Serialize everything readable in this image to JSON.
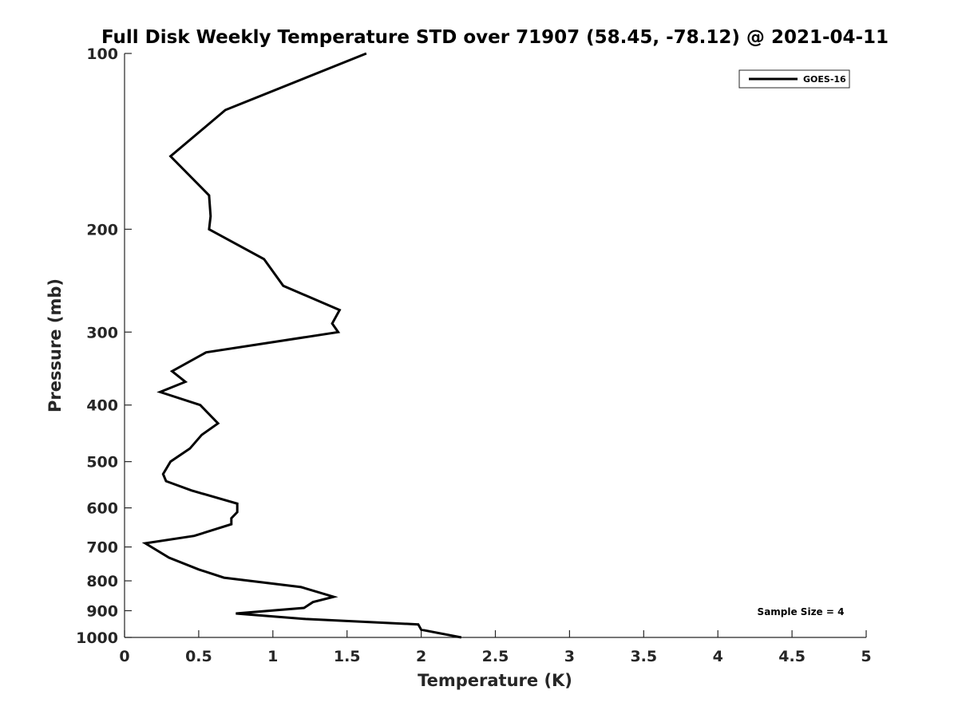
{
  "chart_data": {
    "type": "line",
    "title": "Full Disk Weekly Temperature STD over 71907 (58.45, -78.12) @ 2021-04-11",
    "xlabel": "Temperature (K)",
    "ylabel": "Pressure (mb)",
    "xlim": [
      0,
      5
    ],
    "ylim": [
      100,
      1000
    ],
    "y_scale": "log",
    "y_reversed": true,
    "grid": false,
    "legend_position": "top-right",
    "x_ticks": [
      0,
      0.5,
      1,
      1.5,
      2,
      2.5,
      3,
      3.5,
      4,
      4.5,
      5
    ],
    "x_tick_labels": [
      "0",
      "0.5",
      "1",
      "1.5",
      "2",
      "2.5",
      "3",
      "3.5",
      "4",
      "4.5",
      "5"
    ],
    "y_ticks": [
      100,
      200,
      300,
      400,
      500,
      600,
      700,
      800,
      900,
      1000
    ],
    "y_tick_labels": [
      "100",
      "200",
      "300",
      "400",
      "500",
      "600",
      "700",
      "800",
      "900",
      "1000"
    ],
    "annotation": "Sample Size = 4",
    "series": [
      {
        "name": "GOES-16",
        "color": "#000000",
        "points": [
          [
            1.63,
            100
          ],
          [
            0.68,
            125
          ],
          [
            0.31,
            150
          ],
          [
            0.57,
            175
          ],
          [
            0.58,
            190
          ],
          [
            0.57,
            200
          ],
          [
            0.94,
            225
          ],
          [
            1.07,
            250
          ],
          [
            1.45,
            275
          ],
          [
            1.4,
            290
          ],
          [
            1.44,
            300
          ],
          [
            0.55,
            325
          ],
          [
            0.32,
            350
          ],
          [
            0.41,
            365
          ],
          [
            0.24,
            380
          ],
          [
            0.51,
            400
          ],
          [
            0.63,
            430
          ],
          [
            0.52,
            450
          ],
          [
            0.44,
            475
          ],
          [
            0.31,
            500
          ],
          [
            0.26,
            525
          ],
          [
            0.28,
            540
          ],
          [
            0.45,
            560
          ],
          [
            0.76,
            590
          ],
          [
            0.76,
            610
          ],
          [
            0.72,
            625
          ],
          [
            0.72,
            640
          ],
          [
            0.47,
            670
          ],
          [
            0.14,
            690
          ],
          [
            0.3,
            730
          ],
          [
            0.5,
            765
          ],
          [
            0.67,
            790
          ],
          [
            1.19,
            820
          ],
          [
            1.41,
            852
          ],
          [
            1.27,
            870
          ],
          [
            1.21,
            890
          ],
          [
            0.75,
            910
          ],
          [
            1.22,
            930
          ],
          [
            1.98,
            950
          ],
          [
            2.0,
            970
          ],
          [
            2.27,
            1000
          ]
        ]
      }
    ]
  }
}
